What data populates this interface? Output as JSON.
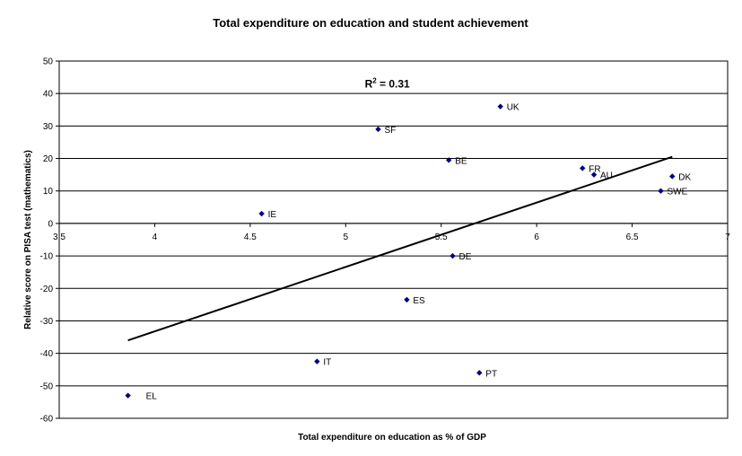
{
  "chart_data": {
    "type": "scatter",
    "title": "Total expenditure on education and student achievement",
    "xlabel": "Total expenditure on education as % of GDP",
    "ylabel": "Relative score on PISA test (mathematics)",
    "xlim": [
      3.5,
      7
    ],
    "ylim": [
      -60,
      50
    ],
    "x_ticks": [
      3.5,
      4,
      4.5,
      5,
      5.5,
      6,
      6.5,
      7
    ],
    "y_ticks": [
      50,
      40,
      30,
      20,
      10,
      0,
      -10,
      -20,
      -30,
      -40,
      -50,
      -60
    ],
    "grid": "horizontal",
    "points": [
      {
        "label": "UK",
        "x": 5.81,
        "y": 36
      },
      {
        "label": "SF",
        "x": 5.17,
        "y": 29
      },
      {
        "label": "BE",
        "x": 5.54,
        "y": 19.5
      },
      {
        "label": "FR",
        "x": 6.24,
        "y": 17
      },
      {
        "label": "AU",
        "x": 6.3,
        "y": 15
      },
      {
        "label": "DK",
        "x": 6.71,
        "y": 14.5
      },
      {
        "label": "SWE",
        "x": 6.65,
        "y": 10
      },
      {
        "label": "IE",
        "x": 4.56,
        "y": 3
      },
      {
        "label": "DE",
        "x": 5.56,
        "y": -10
      },
      {
        "label": "ES",
        "x": 5.32,
        "y": -23.5
      },
      {
        "label": "IT",
        "x": 4.85,
        "y": -42.5
      },
      {
        "label": "PT",
        "x": 5.7,
        "y": -46
      },
      {
        "label": "EL",
        "x": 3.86,
        "y": -53
      }
    ],
    "trendline": {
      "x": [
        3.86,
        6.71
      ],
      "y": [
        -36,
        20.5
      ]
    },
    "annotation": {
      "text_main": "R",
      "sup": "2",
      "text_rest": " = 0.31",
      "x": 5.1,
      "y": 43
    }
  }
}
